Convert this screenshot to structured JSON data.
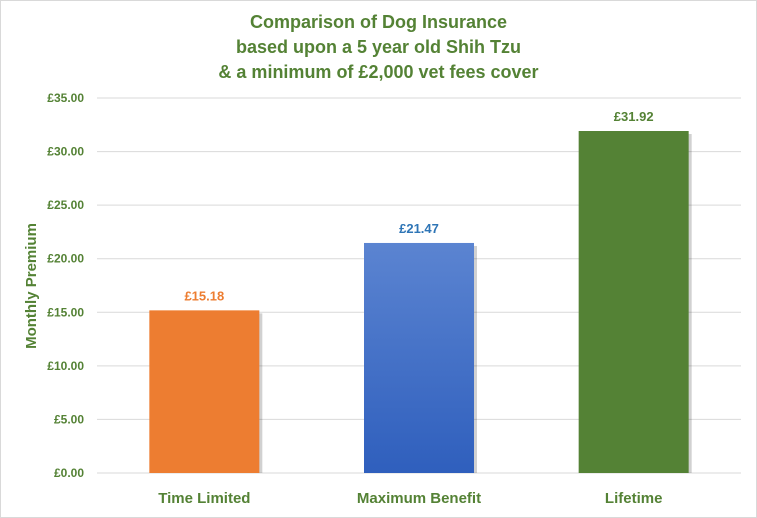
{
  "chart_data": {
    "type": "bar",
    "title_lines": [
      "Comparison  of Dog Insurance",
      "based upon a 5 year old Shih Tzu",
      "& a minimum of £2,000 vet fees cover"
    ],
    "ylabel": "Monthly Premium",
    "xlabel": "",
    "categories": [
      "Time Limited",
      "Maximum Benefit",
      "Lifetime"
    ],
    "values": [
      15.18,
      21.47,
      31.92
    ],
    "data_labels": [
      "£15.18",
      "£21.47",
      "£31.92"
    ],
    "ylim": [
      0,
      35
    ],
    "yticks": [
      0,
      5,
      10,
      15,
      20,
      25,
      30,
      35
    ],
    "ytick_labels": [
      "£0.00",
      "£5.00",
      "£10.00",
      "£15.00",
      "£20.00",
      "£25.00",
      "£30.00",
      "£35.00"
    ],
    "grid": true,
    "legend": "none",
    "colors": {
      "bars": [
        "#ed7d31",
        "#4472c4",
        "#548235"
      ],
      "bar_gradient_top": [
        "#ed7d31",
        "#5b84d1",
        "#548235"
      ],
      "bar_gradient_bottom": [
        "#ed7d31",
        "#2f5fbd",
        "#548235"
      ],
      "data_labels": [
        "#ed7d31",
        "#2e75b6",
        "#548235"
      ],
      "text": "#548235",
      "grid": "#d9d9d9"
    }
  }
}
